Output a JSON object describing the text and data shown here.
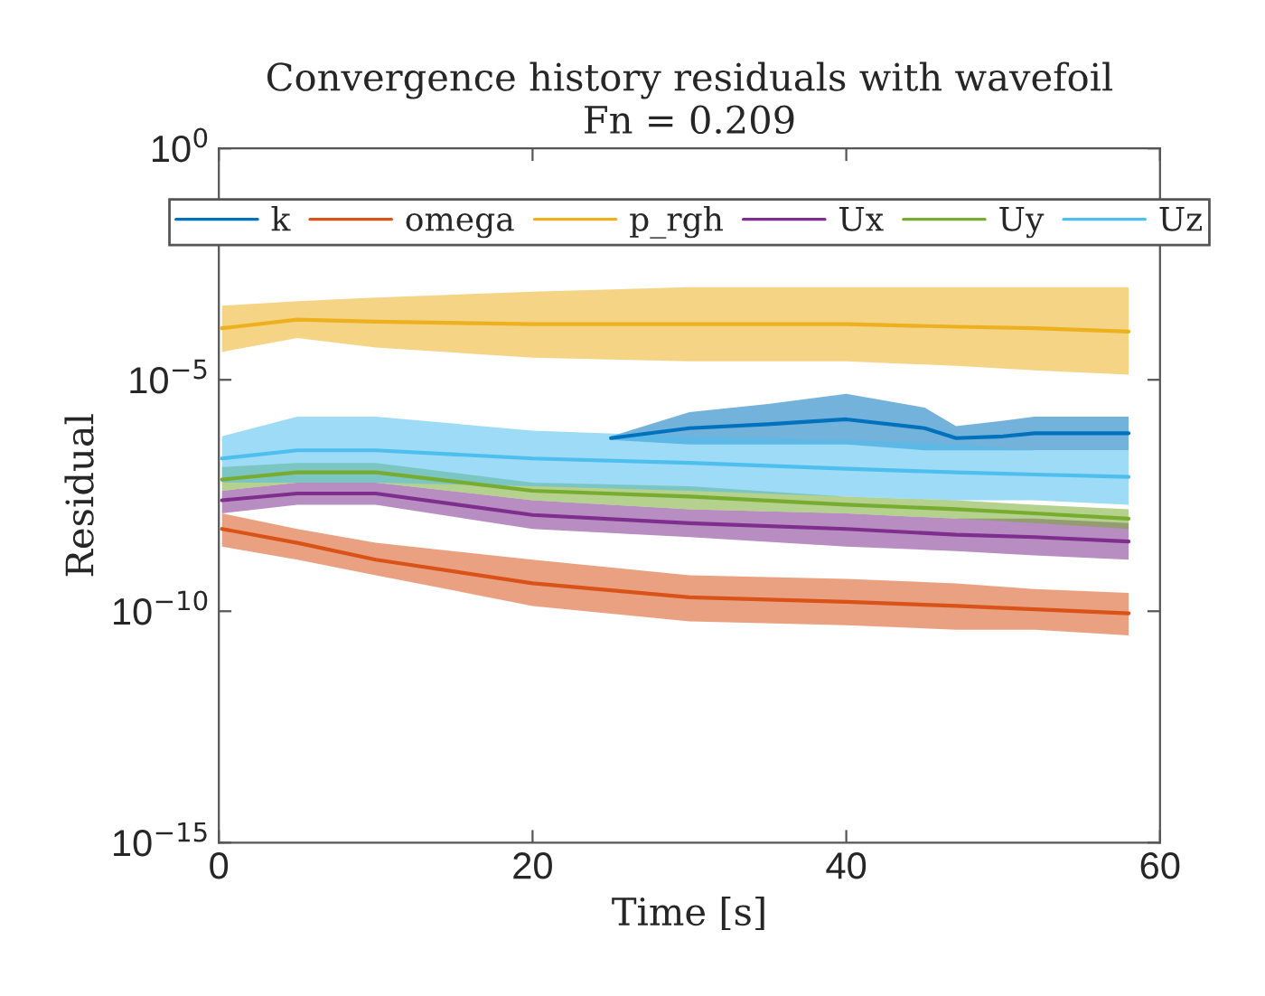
{
  "chart_data": {
    "type": "line",
    "title": "Convergence history residuals with wavefoil\nFn = 0.209",
    "xlabel": "Time [s]",
    "ylabel": "Residual",
    "log": "y",
    "xlim": [
      0,
      60
    ],
    "xticks": [
      0,
      20,
      40,
      60
    ],
    "ylim": [
      1e-15,
      1
    ],
    "yticks": [
      {
        "value": 1e-15,
        "label": "10$^{−15}$"
      },
      {
        "value": 1e-10,
        "label": "10$^{−10}$"
      },
      {
        "value": 1e-05,
        "label": "10$^{−5}$"
      },
      {
        "value": 1,
        "label": "10$^{0}$"
      }
    ],
    "grid": false,
    "legend": "top",
    "marker": "none",
    "line_style": "solid",
    "x": [
      0.2,
      5,
      10,
      20,
      30,
      40,
      47,
      52,
      58
    ],
    "series": [
      {
        "name": "k",
        "color": "#0072bd",
        "x": [
          25,
          30,
          35,
          40,
          45,
          47,
          50,
          52,
          55,
          58
        ],
        "values": [
          5.5e-07,
          9e-07,
          1.1e-06,
          1.4e-06,
          9e-07,
          5.5e-07,
          6e-07,
          7e-07,
          7e-07,
          7e-07
        ],
        "lower": [
          5e-07,
          4e-07,
          4e-07,
          4e-07,
          3e-07,
          3e-07,
          3e-07,
          3e-07,
          3e-07,
          3e-07
        ],
        "upper": [
          6e-07,
          2e-06,
          3e-06,
          5e-06,
          2.5e-06,
          1e-06,
          1.3e-06,
          1.6e-06,
          1.6e-06,
          1.6e-06
        ]
      },
      {
        "name": "omega",
        "color": "#d95319",
        "values": [
          6e-09,
          3e-09,
          1.3e-09,
          4e-10,
          2e-10,
          1.6e-10,
          1.3e-10,
          1.1e-10,
          9e-11
        ],
        "lower": [
          2.5e-09,
          1.3e-09,
          6e-10,
          1.3e-10,
          6e-11,
          5e-11,
          4e-11,
          4e-11,
          3e-11
        ],
        "upper": [
          1.3e-08,
          6e-09,
          3e-09,
          1.3e-09,
          6e-10,
          5e-10,
          4e-10,
          3e-10,
          2.5e-10
        ]
      },
      {
        "name": "p_rgh",
        "color": "#edb120",
        "values": [
          0.00013,
          0.0002,
          0.00018,
          0.00016,
          0.00016,
          0.00016,
          0.00014,
          0.00013,
          0.00011
        ],
        "lower": [
          4e-05,
          8e-05,
          5e-05,
          3e-05,
          2.5e-05,
          2.5e-05,
          2e-05,
          1.6e-05,
          1.3e-05
        ],
        "upper": [
          0.0004,
          0.0005,
          0.0006,
          0.0008,
          0.001,
          0.001,
          0.001,
          0.001,
          0.001
        ]
      },
      {
        "name": "Ux",
        "color": "#7e2f8e",
        "values": [
          2.5e-08,
          3.5e-08,
          3.5e-08,
          1.2e-08,
          8e-09,
          6e-09,
          4.5e-09,
          4e-09,
          3.2e-09
        ],
        "lower": [
          1.3e-08,
          2e-08,
          2e-08,
          6e-09,
          4e-09,
          2.5e-09,
          2e-09,
          1.6e-09,
          1.3e-09
        ],
        "upper": [
          4e-08,
          6e-08,
          6e-08,
          2.5e-08,
          1.6e-08,
          1.3e-08,
          1e-08,
          1e-08,
          8e-09
        ]
      },
      {
        "name": "Uy",
        "color": "#77ac30",
        "values": [
          7e-08,
          1e-07,
          1e-07,
          4e-08,
          3e-08,
          2e-08,
          1.6e-08,
          1.3e-08,
          1e-08
        ],
        "lower": [
          4e-08,
          6e-08,
          6e-08,
          2.5e-08,
          1.6e-08,
          1.3e-08,
          1e-08,
          8e-09,
          6e-09
        ],
        "upper": [
          1.3e-07,
          1.6e-07,
          1.6e-07,
          6e-08,
          5e-08,
          3e-08,
          2.5e-08,
          2e-08,
          1.6e-08
        ]
      },
      {
        "name": "Uz",
        "color": "#4dbeee",
        "values": [
          2e-07,
          3e-07,
          3e-07,
          2e-07,
          1.6e-07,
          1.2e-07,
          1e-07,
          9e-08,
          8e-08
        ],
        "lower": [
          6e-08,
          6e-08,
          6e-08,
          5e-08,
          4e-08,
          3e-08,
          2.5e-08,
          2.5e-08,
          2e-08
        ],
        "upper": [
          6e-07,
          1.6e-06,
          1.6e-06,
          8e-07,
          6e-07,
          5e-07,
          4e-07,
          3e-07,
          3e-07
        ]
      }
    ]
  }
}
